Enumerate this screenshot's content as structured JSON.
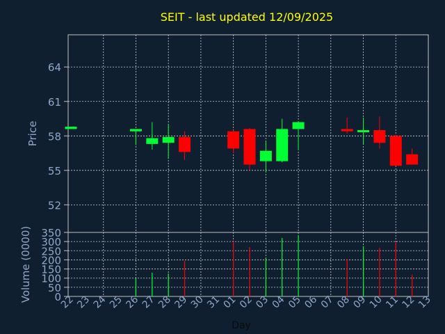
{
  "chart_data": [
    {
      "type": "candlestick",
      "title": "SEIT - last updated 12/09/2025",
      "ylabel": "Price",
      "ylim": [
        49.6,
        66.8
      ],
      "yticks": [
        52,
        55,
        58,
        61,
        64
      ],
      "grid": true,
      "x_categories": [
        "22",
        "23",
        "24",
        "25",
        "26",
        "27",
        "28",
        "29",
        "30",
        "31",
        "01",
        "02",
        "03",
        "04",
        "05",
        "06",
        "07",
        "08",
        "09",
        "10",
        "11",
        "12",
        "13"
      ],
      "candles": [
        {
          "day": "22",
          "open": 58.6,
          "high": 58.8,
          "low": 58.6,
          "close": 58.8,
          "dir": "up"
        },
        {
          "day": "26",
          "open": 58.4,
          "high": 58.6,
          "low": 57.2,
          "close": 58.6,
          "dir": "up"
        },
        {
          "day": "27",
          "open": 57.3,
          "high": 59.2,
          "low": 56.8,
          "close": 57.8,
          "dir": "up"
        },
        {
          "day": "28",
          "open": 57.4,
          "high": 59.0,
          "low": 56.0,
          "close": 57.9,
          "dir": "up"
        },
        {
          "day": "29",
          "open": 57.9,
          "high": 58.4,
          "low": 55.9,
          "close": 56.6,
          "dir": "down"
        },
        {
          "day": "01",
          "open": 58.4,
          "high": 58.5,
          "low": 56.5,
          "close": 56.9,
          "dir": "down"
        },
        {
          "day": "02",
          "open": 58.6,
          "high": 58.7,
          "low": 55.0,
          "close": 55.5,
          "dir": "down"
        },
        {
          "day": "03",
          "open": 55.8,
          "high": 57.6,
          "low": 54.8,
          "close": 56.7,
          "dir": "up"
        },
        {
          "day": "04",
          "open": 55.8,
          "high": 59.5,
          "low": 55.7,
          "close": 58.6,
          "dir": "up"
        },
        {
          "day": "05",
          "open": 58.6,
          "high": 59.3,
          "low": 56.8,
          "close": 59.2,
          "dir": "up"
        },
        {
          "day": "08",
          "open": 58.6,
          "high": 59.6,
          "low": 58.2,
          "close": 58.4,
          "dir": "down"
        },
        {
          "day": "09",
          "open": 58.4,
          "high": 59.6,
          "low": 57.3,
          "close": 58.5,
          "dir": "up"
        },
        {
          "day": "10",
          "open": 58.5,
          "high": 59.7,
          "low": 56.9,
          "close": 57.4,
          "dir": "down"
        },
        {
          "day": "11",
          "open": 58.0,
          "high": 58.1,
          "low": 55.4,
          "close": 55.4,
          "dir": "down"
        },
        {
          "day": "12",
          "open": 56.4,
          "high": 56.9,
          "low": 55.5,
          "close": 55.5,
          "dir": "down"
        }
      ]
    },
    {
      "type": "bar",
      "ylabel": "Volume (0000)",
      "xlabel": "Day",
      "ylim": [
        0,
        350
      ],
      "yticks": [
        0,
        50,
        100,
        150,
        200,
        250,
        300,
        350
      ],
      "grid": true,
      "categories": [
        "22",
        "23",
        "24",
        "25",
        "26",
        "27",
        "28",
        "29",
        "30",
        "31",
        "01",
        "02",
        "03",
        "04",
        "05",
        "06",
        "07",
        "08",
        "09",
        "10",
        "11",
        "12",
        "13"
      ],
      "volumes": [
        {
          "day": "26",
          "value": 100,
          "dir": "up"
        },
        {
          "day": "27",
          "value": 130,
          "dir": "up"
        },
        {
          "day": "28",
          "value": 125,
          "dir": "up"
        },
        {
          "day": "29",
          "value": 195,
          "dir": "down"
        },
        {
          "day": "01",
          "value": 300,
          "dir": "down"
        },
        {
          "day": "02",
          "value": 270,
          "dir": "down"
        },
        {
          "day": "03",
          "value": 210,
          "dir": "up"
        },
        {
          "day": "04",
          "value": 320,
          "dir": "up"
        },
        {
          "day": "05",
          "value": 335,
          "dir": "up"
        },
        {
          "day": "08",
          "value": 205,
          "dir": "down"
        },
        {
          "day": "09",
          "value": 275,
          "dir": "up"
        },
        {
          "day": "10",
          "value": 265,
          "dir": "down"
        },
        {
          "day": "11",
          "value": 295,
          "dir": "down"
        },
        {
          "day": "12",
          "value": 120,
          "dir": "down"
        }
      ]
    }
  ],
  "colors": {
    "background": "#0f1f30",
    "up": "#00ff33",
    "down": "#ff0000",
    "title": "#ffff00",
    "axis_text": "#8fa8c8",
    "frame": "#c0c0c0",
    "grid": "#d0d0d0"
  }
}
